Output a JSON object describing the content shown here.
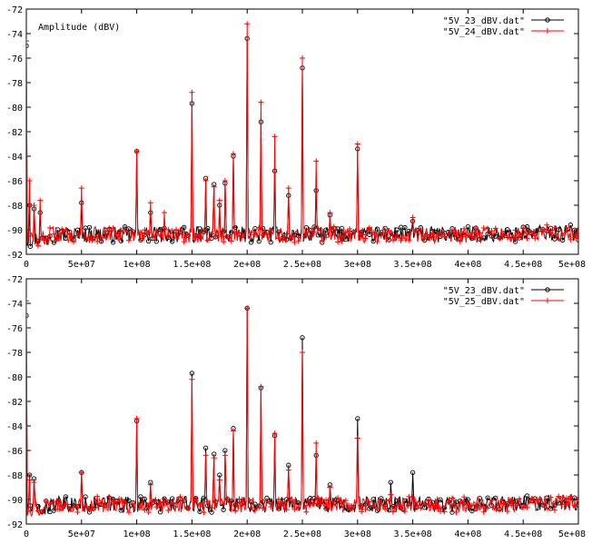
{
  "chart_data": [
    {
      "type": "line",
      "ylabel": "Amplitude (dBV)",
      "xlim": [
        0,
        500000000
      ],
      "ylim": [
        -92,
        -72
      ],
      "xticks": [
        0,
        50000000,
        100000000,
        150000000,
        200000000,
        250000000,
        300000000,
        350000000,
        400000000,
        450000000,
        500000000
      ],
      "xtick_labels": [
        "0",
        "5e+07",
        "1e+08",
        "1.5e+08",
        "2e+08",
        "2.5e+08",
        "3e+08",
        "3.5e+08",
        "4e+08",
        "4.5e+08",
        "5e+08"
      ],
      "yticks": [
        -92,
        -90,
        -88,
        -86,
        -84,
        -82,
        -80,
        -78,
        -76,
        -74,
        -72
      ],
      "ytick_labels": [
        "-92",
        "-90",
        "-88",
        "-86",
        "-84",
        "-82",
        "-80",
        "-78",
        "-76",
        "-74",
        "-72"
      ],
      "legend_position": "top-right",
      "grid": false,
      "noise_floor_dbv": -90.4,
      "series": [
        {
          "name": "\"5V_23_dBV.dat\"",
          "color": "#000000",
          "marker": "circle",
          "peaks": [
            [
              0,
              -75.0
            ],
            [
              3000000,
              -88.0
            ],
            [
              7000000,
              -88.3
            ],
            [
              12500000,
              -88.6
            ],
            [
              50000000,
              -87.8
            ],
            [
              100000000,
              -83.6
            ],
            [
              112500000,
              -88.6
            ],
            [
              150000000,
              -79.7
            ],
            [
              162500000,
              -85.8
            ],
            [
              170000000,
              -86.3
            ],
            [
              175000000,
              -88.0
            ],
            [
              180000000,
              -86.2
            ],
            [
              187500000,
              -84.0
            ],
            [
              200000000,
              -74.4
            ],
            [
              212500000,
              -81.2
            ],
            [
              225000000,
              -85.2
            ],
            [
              237500000,
              -87.2
            ],
            [
              250000000,
              -76.8
            ],
            [
              262500000,
              -86.8
            ],
            [
              275000000,
              -88.8
            ],
            [
              300000000,
              -83.4
            ],
            [
              350000000,
              -89.3
            ]
          ]
        },
        {
          "name": "\"5V_24_dBV.dat\"",
          "color": "#ff0000",
          "marker": "plus",
          "peaks": [
            [
              0,
              -74.6
            ],
            [
              3000000,
              -86.0
            ],
            [
              7000000,
              -88.0
            ],
            [
              12500000,
              -87.6
            ],
            [
              50000000,
              -86.6
            ],
            [
              100000000,
              -83.6
            ],
            [
              112500000,
              -87.8
            ],
            [
              125000000,
              -88.6
            ],
            [
              150000000,
              -78.8
            ],
            [
              162500000,
              -86.0
            ],
            [
              170000000,
              -86.5
            ],
            [
              175000000,
              -87.6
            ],
            [
              180000000,
              -86.0
            ],
            [
              187500000,
              -83.8
            ],
            [
              200000000,
              -73.2
            ],
            [
              212500000,
              -79.6
            ],
            [
              225000000,
              -82.4
            ],
            [
              237500000,
              -86.6
            ],
            [
              250000000,
              -76.0
            ],
            [
              262500000,
              -84.4
            ],
            [
              275000000,
              -88.6
            ],
            [
              300000000,
              -83.0
            ],
            [
              350000000,
              -89.0
            ]
          ]
        }
      ]
    },
    {
      "type": "line",
      "ylabel": "",
      "xlim": [
        0,
        500000000
      ],
      "ylim": [
        -92,
        -72
      ],
      "xticks": [
        0,
        50000000,
        100000000,
        150000000,
        200000000,
        250000000,
        300000000,
        350000000,
        400000000,
        450000000,
        500000000
      ],
      "xtick_labels": [
        "0",
        "5e+07",
        "1e+08",
        "1.5e+08",
        "2e+08",
        "2.5e+08",
        "3e+08",
        "3.5e+08",
        "4e+08",
        "4.5e+08",
        "5e+08"
      ],
      "yticks": [
        -92,
        -90,
        -88,
        -86,
        -84,
        -82,
        -80,
        -78,
        -76,
        -74,
        -72
      ],
      "ytick_labels": [
        "-92",
        "-90",
        "-88",
        "-86",
        "-84",
        "-82",
        "-80",
        "-78",
        "-76",
        "-74",
        "-72"
      ],
      "legend_position": "top-right",
      "grid": false,
      "noise_floor_dbv": -90.4,
      "series": [
        {
          "name": "\"5V_23_dBV.dat\"",
          "color": "#000000",
          "marker": "circle",
          "peaks": [
            [
              0,
              -75.0
            ],
            [
              3000000,
              -88.0
            ],
            [
              7000000,
              -88.3
            ],
            [
              50000000,
              -87.8
            ],
            [
              100000000,
              -83.6
            ],
            [
              112500000,
              -88.6
            ],
            [
              150000000,
              -79.7
            ],
            [
              162500000,
              -85.8
            ],
            [
              170000000,
              -86.3
            ],
            [
              175000000,
              -88.0
            ],
            [
              180000000,
              -86.0
            ],
            [
              187500000,
              -84.2
            ],
            [
              200000000,
              -74.4
            ],
            [
              212500000,
              -80.9
            ],
            [
              225000000,
              -84.8
            ],
            [
              237500000,
              -87.2
            ],
            [
              250000000,
              -76.8
            ],
            [
              262500000,
              -86.4
            ],
            [
              275000000,
              -88.8
            ],
            [
              300000000,
              -83.4
            ],
            [
              330000000,
              -88.6
            ],
            [
              350000000,
              -87.8
            ]
          ]
        },
        {
          "name": "\"5V_25_dBV.dat\"",
          "color": "#ff0000",
          "marker": "plus",
          "peaks": [
            [
              0,
              -73.8
            ],
            [
              3000000,
              -88.4
            ],
            [
              7000000,
              -88.6
            ],
            [
              50000000,
              -87.8
            ],
            [
              100000000,
              -83.4
            ],
            [
              112500000,
              -88.8
            ],
            [
              150000000,
              -80.2
            ],
            [
              162500000,
              -86.4
            ],
            [
              170000000,
              -86.6
            ],
            [
              175000000,
              -88.4
            ],
            [
              180000000,
              -86.4
            ],
            [
              187500000,
              -84.4
            ],
            [
              200000000,
              -74.4
            ],
            [
              212500000,
              -80.8
            ],
            [
              225000000,
              -84.6
            ],
            [
              237500000,
              -87.6
            ],
            [
              250000000,
              -78.0
            ],
            [
              262500000,
              -85.4
            ],
            [
              275000000,
              -89.0
            ],
            [
              300000000,
              -85.0
            ],
            [
              330000000,
              -89.6
            ],
            [
              350000000,
              -89.8
            ]
          ]
        }
      ]
    }
  ]
}
